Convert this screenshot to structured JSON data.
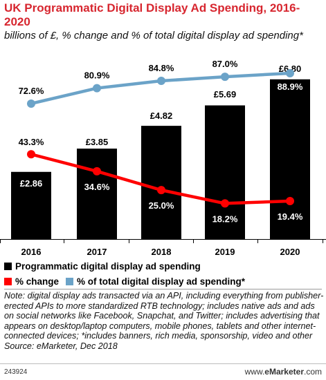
{
  "title": "UK Programmatic Digital Display Ad Spending, 2016-2020",
  "subtitle": "billions of £, % change and % of total digital display ad spending*",
  "chart_data": {
    "type": "bar",
    "categories": [
      "2016",
      "2017",
      "2018",
      "2019",
      "2020"
    ],
    "series": [
      {
        "name": "Programmatic digital display ad spending",
        "kind": "bar",
        "values": [
          2.86,
          3.85,
          4.82,
          5.69,
          6.8
        ],
        "labels": [
          "£2.86",
          "£3.85",
          "£4.82",
          "£5.69",
          "£6.80"
        ],
        "color": "#000000"
      },
      {
        "name": "% change",
        "kind": "line",
        "values": [
          43.3,
          34.6,
          25.0,
          18.2,
          19.4
        ],
        "labels": [
          "43.3%",
          "34.6%",
          "25.0%",
          "18.2%",
          "19.4%"
        ],
        "color": "#ff0000"
      },
      {
        "name": "% of total digital display ad spending*",
        "kind": "line",
        "values": [
          72.6,
          80.9,
          84.8,
          87.0,
          88.9
        ],
        "labels": [
          "72.6%",
          "80.9%",
          "84.8%",
          "87.0%",
          "88.9%"
        ],
        "color": "#6ba3c8"
      }
    ],
    "ylim_bars": [
      0,
      7
    ],
    "ylim_lines": [
      0,
      100
    ]
  },
  "legend": {
    "items": [
      {
        "label": "Programmatic digital display ad spending",
        "color": "#000000"
      },
      {
        "label": "% change",
        "color": "#ff0000"
      },
      {
        "label": "% of total digital display ad spending*",
        "color": "#6ba3c8"
      }
    ]
  },
  "note": "Note: digital display ads transacted via an API, including everything from publisher-erected APIs to more standardized RTB technology; includes native ads and ads on social networks like Facebook, Snapchat, and Twitter; includes advertising that appears on desktop/laptop computers, mobile phones, tablets and other internet-connected devices; *includes banners, rich media, sponsorship, video and other",
  "source": "Source: eMarketer, Dec 2018",
  "chart_id": "243924",
  "brand": {
    "prefix": "www.",
    "name": "eMarketer",
    "suffix": ".com"
  }
}
